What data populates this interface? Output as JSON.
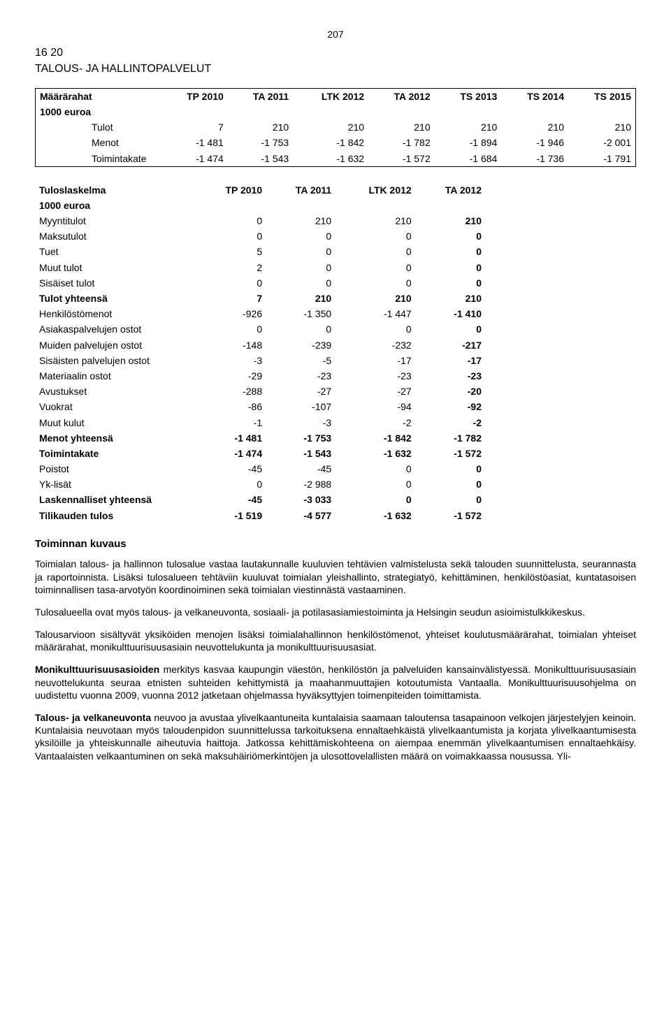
{
  "page_number": "207",
  "section_code": "16 20",
  "section_title": "TALOUS- JA HALLINTOPALVELUT",
  "t1": {
    "header_left": "Määrärahat",
    "header_sub": "1000 euroa",
    "cols": [
      "TP 2010",
      "TA 2011",
      "LTK 2012",
      "TA 2012",
      "TS 2013",
      "TS 2014",
      "TS 2015"
    ],
    "rows": [
      {
        "label": "Tulot",
        "v": [
          "7",
          "210",
          "210",
          "210",
          "210",
          "210",
          "210"
        ]
      },
      {
        "label": "Menot",
        "v": [
          "-1 481",
          "-1 753",
          "-1 842",
          "-1 782",
          "-1 894",
          "-1 946",
          "-2 001"
        ]
      },
      {
        "label": "Toimintakate",
        "v": [
          "-1 474",
          "-1 543",
          "-1 632",
          "-1 572",
          "-1 684",
          "-1 736",
          "-1 791"
        ]
      }
    ]
  },
  "t2": {
    "header_left": "Tuloslaskelma",
    "header_sub": "1000 euroa",
    "cols": [
      "TP 2010",
      "TA 2011",
      "LTK 2012",
      "TA 2012"
    ],
    "rows": [
      {
        "label": "Myyntitulot",
        "v": [
          "0",
          "210",
          "210",
          "210"
        ],
        "bold_last": true
      },
      {
        "label": "Maksutulot",
        "v": [
          "0",
          "0",
          "0",
          "0"
        ],
        "bold_last": true
      },
      {
        "label": "Tuet",
        "v": [
          "5",
          "0",
          "0",
          "0"
        ],
        "bold_last": true
      },
      {
        "label": "Muut tulot",
        "v": [
          "2",
          "0",
          "0",
          "0"
        ],
        "bold_last": true
      },
      {
        "label": "Sisäiset tulot",
        "v": [
          "0",
          "0",
          "0",
          "0"
        ],
        "bold_last": true
      },
      {
        "label": "Tulot yhteensä",
        "v": [
          "7",
          "210",
          "210",
          "210"
        ],
        "bold_row": true
      },
      {
        "label": "Henkilöstömenot",
        "v": [
          "-926",
          "-1 350",
          "-1 447",
          "-1 410"
        ],
        "bold_last": true
      },
      {
        "label": "Asiakaspalvelujen ostot",
        "v": [
          "0",
          "0",
          "0",
          "0"
        ],
        "bold_last": true
      },
      {
        "label": "Muiden palvelujen ostot",
        "v": [
          "-148",
          "-239",
          "-232",
          "-217"
        ],
        "bold_last": true
      },
      {
        "label": "Sisäisten palvelujen ostot",
        "v": [
          "-3",
          "-5",
          "-17",
          "-17"
        ],
        "bold_last": true
      },
      {
        "label": "Materiaalin ostot",
        "v": [
          "-29",
          "-23",
          "-23",
          "-23"
        ],
        "bold_last": true
      },
      {
        "label": "Avustukset",
        "v": [
          "-288",
          "-27",
          "-27",
          "-20"
        ],
        "bold_last": true
      },
      {
        "label": "Vuokrat",
        "v": [
          "-86",
          "-107",
          "-94",
          "-92"
        ],
        "bold_last": true
      },
      {
        "label": "Muut kulut",
        "v": [
          "-1",
          "-3",
          "-2",
          "-2"
        ],
        "bold_last": true
      },
      {
        "label": "Menot yhteensä",
        "v": [
          "-1 481",
          "-1 753",
          "-1 842",
          "-1 782"
        ],
        "bold_row": true
      },
      {
        "label": "Toimintakate",
        "v": [
          "-1 474",
          "-1 543",
          "-1 632",
          "-1 572"
        ],
        "bold_row": true
      },
      {
        "label": "Poistot",
        "v": [
          "-45",
          "-45",
          "0",
          "0"
        ],
        "bold_last": true
      },
      {
        "label": "Yk-lisät",
        "v": [
          "0",
          "-2 988",
          "0",
          "0"
        ],
        "bold_last": true
      },
      {
        "label": "Laskennalliset yhteensä",
        "v": [
          "-45",
          "-3 033",
          "0",
          "0"
        ],
        "bold_row": true
      },
      {
        "label": "Tilikauden tulos",
        "v": [
          "-1 519",
          "-4 577",
          "-1 632",
          "-1 572"
        ],
        "bold_row": true
      }
    ]
  },
  "desc_heading": "Toiminnan kuvaus",
  "p1": "Toimialan talous- ja hallinnon tulosalue vastaa lautakunnalle kuuluvien tehtävien valmistelusta sekä talouden suunnittelusta, seurannasta ja raportoinnista. Lisäksi tulosalueen tehtäviin kuuluvat toimialan yleishallinto, strategiatyö, kehittäminen, henkilöstöasiat, kuntatasoisen toiminnallisen tasa-arvotyön koordinoiminen sekä toimialan viestinnästä vastaaminen.",
  "p2": "Tulosalueella ovat myös talous- ja velkaneuvonta, sosiaali- ja potilasasiamiestoiminta ja Helsingin seudun asioimistulkkikeskus.",
  "p3": "Talousarvioon sisältyvät yksiköiden menojen lisäksi toimialahallinnon henkilöstömenot, yhteiset koulutusmäärärahat, toimialan yhteiset määrärahat, monikulttuurisuusasiain neuvottelukunta ja monikulttuurisuusasiat.",
  "p4_lead": "Monikulttuurisuusasioiden",
  "p4_rest": " merkitys kasvaa kaupungin väestön, henkilöstön ja palveluiden kansainvälistyessä. Monikulttuurisuusasiain neuvottelukunta seuraa etnisten suhteiden kehittymistä ja maahanmuuttajien kotoutumista Vantaalla. Monikulttuurisuusohjelma on uudistettu vuonna 2009, vuonna 2012 jatketaan ohjelmassa hyväksyttyjen toimenpiteiden toimittamista.",
  "p5_lead": "Talous- ja velkaneuvonta",
  "p5_rest": " neuvoo ja avustaa ylivelkaantuneita kuntalaisia saamaan taloutensa tasapainoon velkojen järjestelyjen keinoin. Kuntalaisia neuvotaan myös taloudenpidon suunnittelussa tarkoituksena ennaltaehkäistä ylivelkaantumista ja korjata ylivelkaantumisesta yksilöille ja yhteiskunnalle aiheutuvia haittoja. Jatkossa kehittämiskohteena on aiempaa enemmän ylivelkaantumisen ennaltaehkäisy. Vantaalaisten velkaantuminen on sekä maksuhäiriömerkintöjen ja ulosottovelallisten määrä on voimakkaassa nousussa. Yli-"
}
